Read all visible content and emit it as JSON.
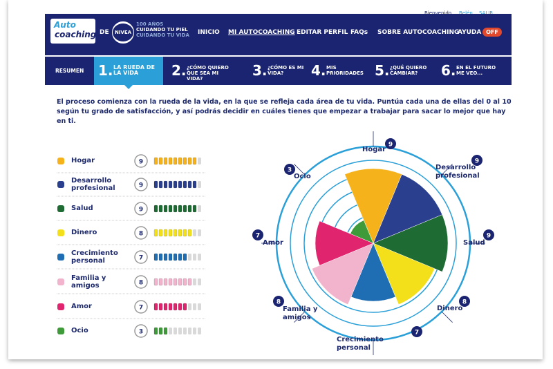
{
  "header": {
    "welcome": "Bienvenido",
    "user": "Belén",
    "logout": "SALIR",
    "logo": [
      "Auto",
      "coaching"
    ],
    "de": "DE",
    "brand": "NIVEA",
    "tagline": [
      "100 AÑOS",
      "CUIDANDO TU PIEL",
      "CUIDANDO TU VIDA"
    ],
    "nav": [
      "INICIO",
      "MI AUTOCOACHING",
      "EDITAR PERFIL",
      "FAQs",
      "SOBRE AUTOCOACHING",
      "AYUDA"
    ],
    "toggle": "OFF"
  },
  "steps": {
    "summary": "RESUMEN",
    "items": [
      {
        "number": "1.",
        "label": "LA RUEDA DE LA VIDA"
      },
      {
        "number": "2.",
        "label": "¿CÓMO QUIERO QUE SEA MI VIDA?"
      },
      {
        "number": "3.",
        "label": "¿CÓMO ES MI VIDA?"
      },
      {
        "number": "4.",
        "label": "MIS PRIORIDADES"
      },
      {
        "number": "5.",
        "label": "¿QUÉ QUIERO CAMBIAR?"
      },
      {
        "number": "6.",
        "label": "EN EL FUTURO ME VEO..."
      }
    ]
  },
  "intro": "El proceso comienza con la rueda de la vida, en la que se refleja cada área de tu vida. Puntúa cada una de ellas del 0 al 10 según tu grado de satisfacción, y así podrás decidir en cuáles tienes que empezar a trabajar para sacar lo mejor que hay en ti.",
  "wheel": {
    "rlim": [
      0,
      10
    ]
  },
  "areas": [
    {
      "name": "Hogar",
      "score": 9,
      "color": "#f5b21b"
    },
    {
      "name": "Desarrollo profesional",
      "score": 9,
      "color": "#2b3f8f"
    },
    {
      "name": "Salud",
      "score": 9,
      "color": "#1e6b34"
    },
    {
      "name": "Dinero",
      "score": 8,
      "color": "#f3e01a"
    },
    {
      "name": "Crecimiento personal",
      "score": 7,
      "color": "#1f6db3"
    },
    {
      "name": "Familia y amigos",
      "score": 8,
      "color": "#f2b3cc"
    },
    {
      "name": "Amor",
      "score": 7,
      "color": "#e0246e"
    },
    {
      "name": "Ocio",
      "score": 3,
      "color": "#3f9a3a"
    }
  ]
}
